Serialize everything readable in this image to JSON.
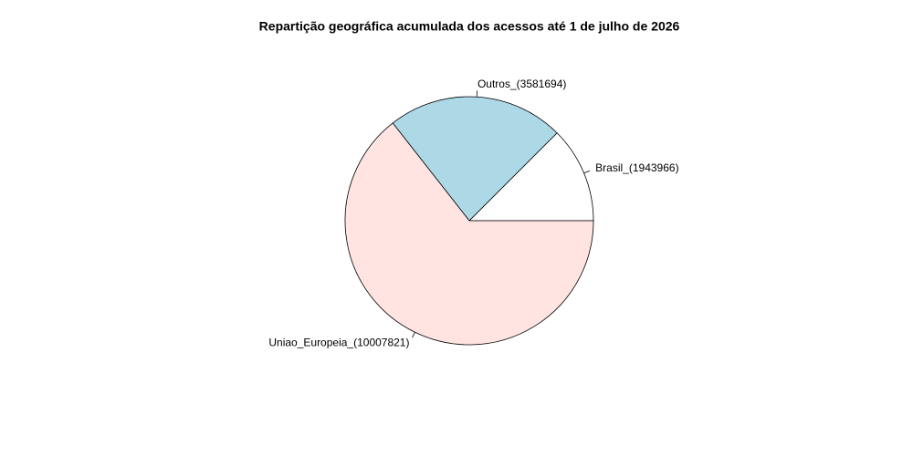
{
  "chart_data": {
    "type": "pie",
    "title": "Repartição geográfica acumulada dos acessos até 1 de julho de 2026",
    "values": [
      1943966,
      3581694,
      10007821
    ],
    "value_labels": [
      "Brasil_(1943966)",
      "Outros_(3581694)",
      "Uniao_Europeia_(10007821)"
    ],
    "colors": [
      "#ffffff",
      "#add8e6",
      "#ffe4e1"
    ]
  }
}
